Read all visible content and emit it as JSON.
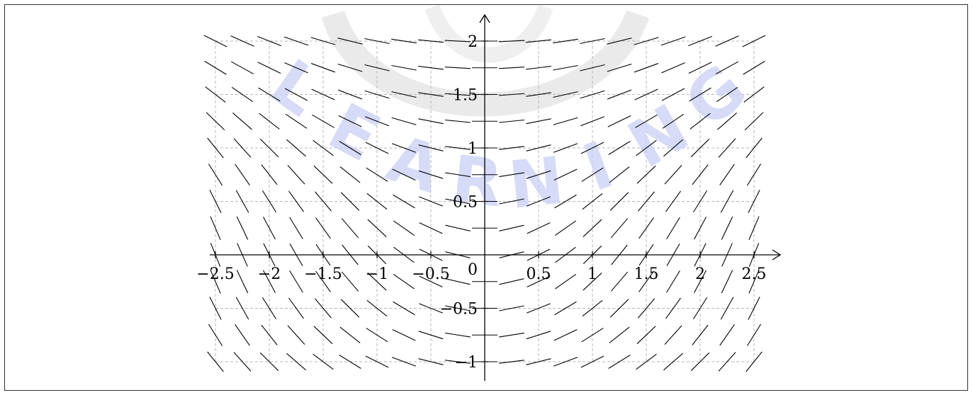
{
  "chart_data": {
    "type": "slope_field",
    "title": "",
    "xlabel": "",
    "ylabel": "",
    "xlim": [
      -2.5,
      2.5
    ],
    "ylim": [
      -1,
      2
    ],
    "x_ticks": [
      -2.5,
      -2,
      -1.5,
      -1,
      -0.5,
      0.5,
      1,
      1.5,
      2,
      2.5
    ],
    "y_ticks": [
      -1,
      -0.5,
      0.5,
      1,
      1.5,
      2
    ],
    "x_tick_labels": [
      "−2.5",
      "−2",
      "−1.5",
      "−1",
      "−0.5",
      "0.5",
      "1",
      "1.5",
      "2",
      "2.5"
    ],
    "y_tick_labels": [
      "−1",
      "−0.5",
      "0.5",
      "1",
      "1.5",
      "2"
    ],
    "origin_label": "0",
    "grid": true,
    "grid_style": "dashed",
    "sample_x": [
      -2.5,
      -2.25,
      -2,
      -1.75,
      -1.5,
      -1.25,
      -1,
      -0.75,
      -0.5,
      -0.25,
      0,
      0.25,
      0.5,
      0.75,
      1,
      1.25,
      1.5,
      1.75,
      2,
      2.25,
      2.5
    ],
    "sample_y": [
      -1,
      -0.75,
      -0.5,
      -0.25,
      0,
      0.25,
      0.5,
      0.75,
      1,
      1.25,
      1.5,
      1.75,
      2
    ]
  },
  "watermark": {
    "text": "LEARNING",
    "color": "#c9cff5"
  }
}
